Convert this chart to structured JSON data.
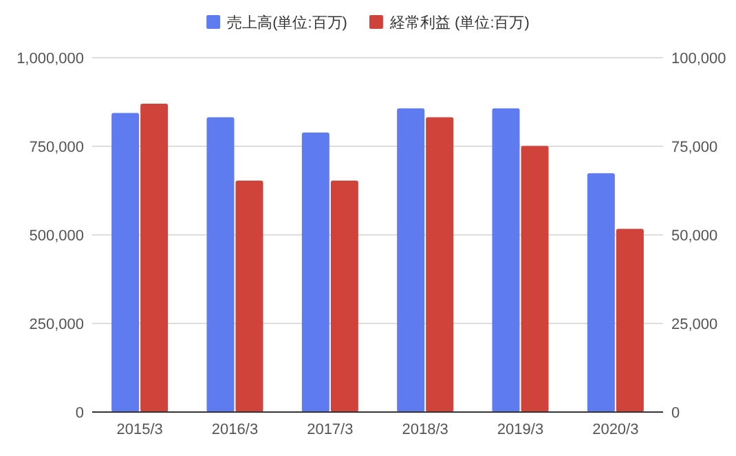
{
  "chart_data": {
    "type": "bar",
    "categories": [
      "2015/3",
      "2016/3",
      "2017/3",
      "2018/3",
      "2019/3",
      "2020/3"
    ],
    "series": [
      {
        "name": "売上高(単位:百万)",
        "color": "#5f7bf0",
        "values": [
          844000,
          832000,
          789000,
          857000,
          857000,
          674000
        ]
      },
      {
        "name": "経常利益 (単位:百万)",
        "color": "#cf433a",
        "values": [
          87000,
          65300,
          65300,
          83200,
          75100,
          51700
        ],
        "axis": "y2"
      }
    ],
    "ylim": [
      0,
      1000000
    ],
    "yticks": [
      {
        "value": 0,
        "label": "0"
      },
      {
        "value": 250000,
        "label": "250,000"
      },
      {
        "value": 500000,
        "label": "500,000"
      },
      {
        "value": 750000,
        "label": "750,000"
      },
      {
        "value": 1000000,
        "label": "1,000,000"
      }
    ],
    "y2lim": [
      0,
      100000
    ],
    "y2ticks": [
      {
        "value": 0,
        "label": "0"
      },
      {
        "value": 25000,
        "label": "25,000"
      },
      {
        "value": 50000,
        "label": "50,000"
      },
      {
        "value": 75000,
        "label": "75,000"
      },
      {
        "value": 100000,
        "label": "100,000"
      }
    ],
    "grid": "y",
    "legend": "top"
  }
}
